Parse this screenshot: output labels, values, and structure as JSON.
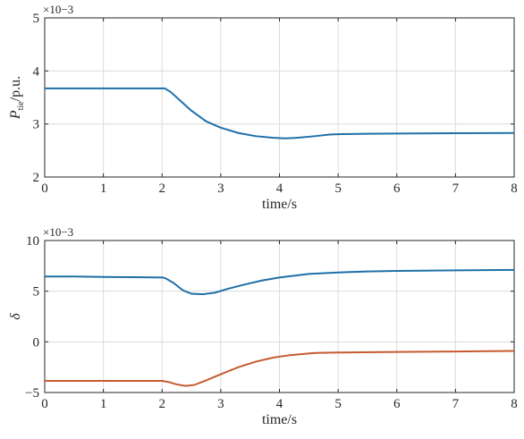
{
  "chart_data": [
    {
      "type": "line",
      "xlabel": "time/s",
      "ylabel": {
        "main": "P",
        "sub": "tie",
        "suffix": "/p.u."
      },
      "y_multiplier": "×10−3",
      "xlim": [
        0,
        8
      ],
      "ylim": [
        2,
        5
      ],
      "xticks": [
        0,
        1,
        2,
        3,
        4,
        5,
        6,
        7,
        8
      ],
      "yticks": [
        2,
        3,
        4,
        5
      ],
      "grid": true,
      "series": [
        {
          "color": "#1f6fa8",
          "points": [
            [
              0,
              3.67
            ],
            [
              0.5,
              3.67
            ],
            [
              1,
              3.67
            ],
            [
              1.5,
              3.67
            ],
            [
              2,
              3.67
            ],
            [
              2.05,
              3.67
            ],
            [
              2.15,
              3.6
            ],
            [
              2.3,
              3.45
            ],
            [
              2.5,
              3.25
            ],
            [
              2.75,
              3.05
            ],
            [
              3,
              2.93
            ],
            [
              3.3,
              2.83
            ],
            [
              3.6,
              2.77
            ],
            [
              3.9,
              2.74
            ],
            [
              4.1,
              2.73
            ],
            [
              4.3,
              2.74
            ],
            [
              4.6,
              2.77
            ],
            [
              4.85,
              2.8
            ],
            [
              5.05,
              2.81
            ],
            [
              5.5,
              2.815
            ],
            [
              6,
              2.82
            ],
            [
              7,
              2.825
            ],
            [
              8,
              2.83
            ]
          ]
        }
      ]
    },
    {
      "type": "line",
      "xlabel": "time/s",
      "ylabel": "δ",
      "y_multiplier": "×10−3",
      "xlim": [
        0,
        8
      ],
      "ylim": [
        -5,
        10
      ],
      "xticks": [
        0,
        1,
        2,
        3,
        4,
        5,
        6,
        7,
        8
      ],
      "yticks": [
        -5,
        0,
        5,
        10
      ],
      "ytick_labels": [
        "−5",
        "0",
        "5",
        "10"
      ],
      "grid": true,
      "series": [
        {
          "color": "#1f6fa8",
          "points": [
            [
              0,
              6.45
            ],
            [
              0.5,
              6.45
            ],
            [
              1,
              6.4
            ],
            [
              1.5,
              6.38
            ],
            [
              2,
              6.35
            ],
            [
              2.05,
              6.3
            ],
            [
              2.2,
              5.8
            ],
            [
              2.35,
              5.1
            ],
            [
              2.5,
              4.75
            ],
            [
              2.7,
              4.7
            ],
            [
              2.9,
              4.85
            ],
            [
              3.1,
              5.2
            ],
            [
              3.4,
              5.65
            ],
            [
              3.7,
              6.05
            ],
            [
              4,
              6.35
            ],
            [
              4.5,
              6.7
            ],
            [
              5,
              6.85
            ],
            [
              5.5,
              6.95
            ],
            [
              6,
              7.0
            ],
            [
              7,
              7.05
            ],
            [
              8,
              7.1
            ]
          ]
        },
        {
          "color": "#c75a31",
          "points": [
            [
              0,
              -3.85
            ],
            [
              0.5,
              -3.85
            ],
            [
              1,
              -3.85
            ],
            [
              1.5,
              -3.85
            ],
            [
              2,
              -3.85
            ],
            [
              2.1,
              -3.95
            ],
            [
              2.25,
              -4.2
            ],
            [
              2.4,
              -4.35
            ],
            [
              2.55,
              -4.25
            ],
            [
              2.75,
              -3.8
            ],
            [
              3,
              -3.2
            ],
            [
              3.3,
              -2.5
            ],
            [
              3.6,
              -1.95
            ],
            [
              3.9,
              -1.55
            ],
            [
              4.2,
              -1.3
            ],
            [
              4.6,
              -1.1
            ],
            [
              5,
              -1.05
            ],
            [
              6,
              -1.0
            ],
            [
              7,
              -0.95
            ],
            [
              8,
              -0.9
            ]
          ]
        }
      ]
    }
  ]
}
